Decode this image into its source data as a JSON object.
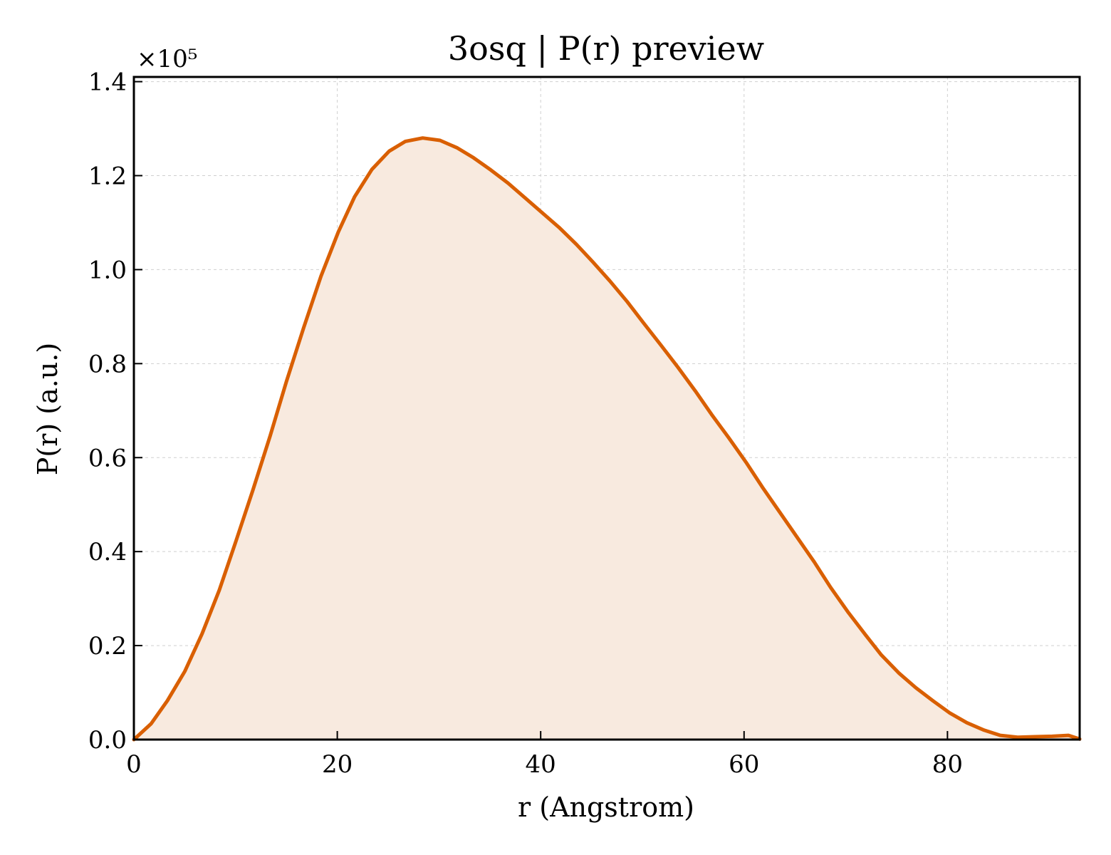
{
  "chart_data": {
    "type": "area",
    "title": "3osq | P(r) preview",
    "xlabel": "r (Angstrom)",
    "ylabel": "P(r) (a.u.)",
    "y_scale_label": "×10⁵",
    "xlim": [
      0,
      93
    ],
    "ylim": [
      0,
      1.41
    ],
    "x_ticks": [
      0,
      20,
      40,
      60,
      80
    ],
    "y_ticks": [
      0.0,
      0.2,
      0.4,
      0.6,
      0.8,
      1.0,
      1.2,
      1.4
    ],
    "x_tick_labels": [
      "0",
      "20",
      "40",
      "60",
      "80"
    ],
    "y_tick_labels": [
      "0.0",
      "0.2",
      "0.4",
      "0.6",
      "0.8",
      "1.0",
      "1.2",
      "1.4"
    ],
    "grid": true,
    "colors": {
      "line": "#d95f02",
      "fill": "#f8eadf"
    },
    "series": [
      {
        "x": [
          0,
          1.7,
          3.3,
          5.0,
          6.7,
          8.4,
          10.0,
          11.7,
          13.4,
          15.0,
          16.7,
          18.4,
          20.1,
          21.7,
          23.4,
          25.1,
          26.7,
          28.4,
          30.1,
          31.8,
          33.4,
          35.1,
          36.8,
          38.4,
          40.1,
          41.8,
          43.5,
          45.1,
          46.8,
          48.5,
          50.1,
          51.8,
          53.5,
          55.2,
          56.8,
          58.5,
          60.2,
          61.8,
          63.5,
          65.2,
          66.9,
          68.5,
          70.2,
          71.9,
          73.5,
          75.2,
          76.9,
          78.6,
          80.2,
          81.9,
          83.6,
          85.2,
          86.9,
          88.6,
          90.3,
          91.9,
          93.0
        ],
        "y": [
          0.0,
          0.034,
          0.083,
          0.145,
          0.225,
          0.318,
          0.42,
          0.531,
          0.646,
          0.762,
          0.877,
          0.986,
          1.08,
          1.155,
          1.213,
          1.252,
          1.273,
          1.28,
          1.275,
          1.259,
          1.238,
          1.212,
          1.184,
          1.154,
          1.122,
          1.09,
          1.054,
          1.017,
          0.976,
          0.932,
          0.887,
          0.84,
          0.792,
          0.742,
          0.692,
          0.642,
          0.59,
          0.537,
          0.484,
          0.431,
          0.378,
          0.324,
          0.272,
          0.224,
          0.18,
          0.142,
          0.11,
          0.082,
          0.057,
          0.036,
          0.02,
          0.009,
          0.005,
          0.006,
          0.007,
          0.009,
          0.001
        ]
      }
    ]
  }
}
